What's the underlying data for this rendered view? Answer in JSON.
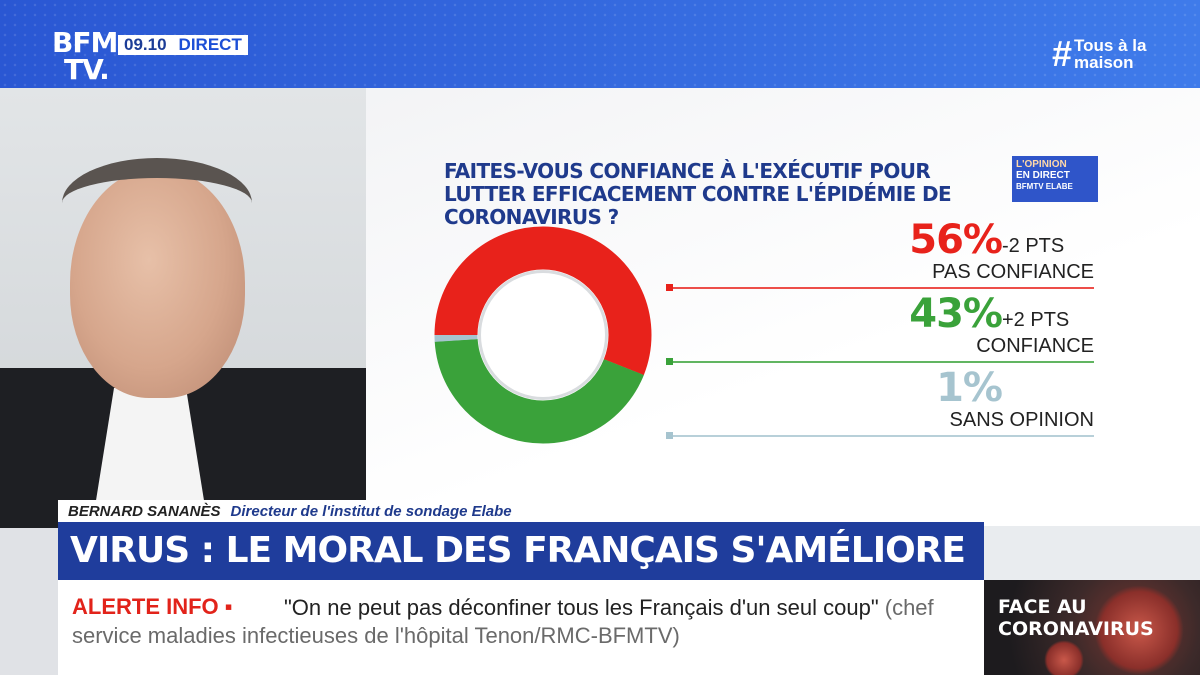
{
  "header": {
    "logo_line1": "BFM",
    "logo_line2": "TV.",
    "time": "09.10",
    "live": "DIRECT",
    "hashtag_symbol": "#",
    "hashtag_text": "Tous à la maison"
  },
  "poll": {
    "question": "FAITES-VOUS CONFIANCE À L'EXÉCUTIF POUR LUTTER EFFICACEMENT CONTRE L'ÉPIDÉMIE DE CORONAVIRUS ?",
    "badge_line1": "L'OPINION",
    "badge_line2": "EN DIRECT",
    "badge_line3": "BFMTV ELABE"
  },
  "chart_data": {
    "type": "pie",
    "donut": true,
    "slices": [
      {
        "label": "PAS CONFIANCE",
        "value": 56,
        "display": "56%",
        "delta": "-2 PTS",
        "color": "#e8221b"
      },
      {
        "label": "CONFIANCE",
        "value": 43,
        "display": "43%",
        "delta": "+2 PTS",
        "color": "#3aa23a"
      },
      {
        "label": "SANS OPINION",
        "value": 1,
        "display": "1%",
        "delta": "",
        "color": "#a6c4cf"
      }
    ]
  },
  "guest": {
    "name": "BERNARD SANANÈS",
    "role": "Directeur de l'institut de sondage Elabe"
  },
  "headline": "VIRUS : LE MORAL DES FRANÇAIS S'AMÉLIORE",
  "ticker": {
    "alert": "ALERTE INFO ▪",
    "quote": "\"On ne peut pas déconfiner tous les Français d'un seul coup\"",
    "source": "(chef service maladies infectieuses de l'hôpital Tenon/RMC-BFMTV)"
  },
  "corner": {
    "line1": "FACE AU",
    "line2": "CORONAVIRUS"
  }
}
